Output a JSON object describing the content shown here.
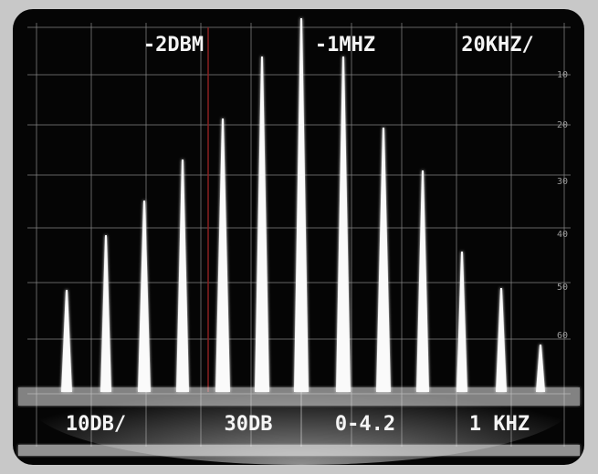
{
  "readouts": {
    "top": [
      "-2DBM",
      "-1MHZ",
      "20KHZ/"
    ],
    "bottom": [
      "10DB/",
      "30DB",
      "0-4.2",
      "1 KHZ"
    ]
  },
  "scale": [
    "10",
    "20",
    "30",
    "40",
    "50",
    "60"
  ]
}
